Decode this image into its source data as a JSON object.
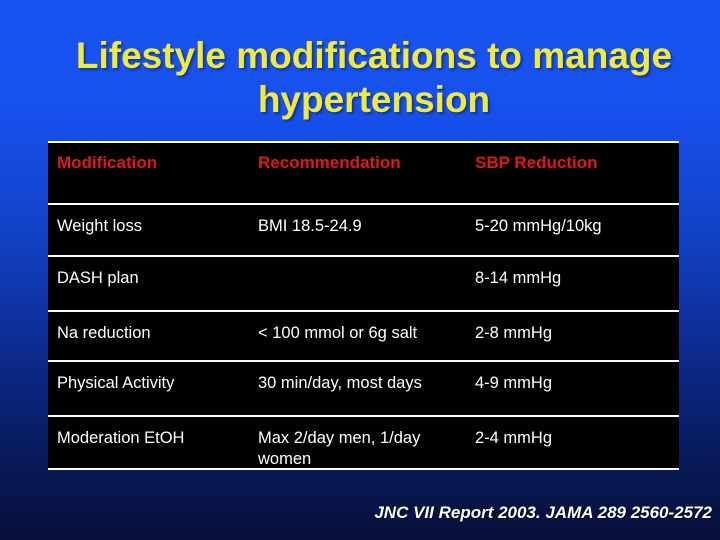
{
  "colors": {
    "background_top": "#1854F2",
    "background_bottom": "#060F38",
    "title_yellow": "#F0E93E",
    "header_red": "#CE1F1F",
    "table_background": "#000000",
    "table_divider": "#FFFFFF",
    "body_text": "#FFFFFF",
    "footer_text": "#FFFFFF"
  },
  "title": {
    "line1": "Lifestyle modifications to manage",
    "line2": "hypertension"
  },
  "table": {
    "headers": [
      "Modification",
      "Recommendation",
      "SBP Reduction"
    ],
    "rows": [
      {
        "modification": "Weight loss",
        "recommendation": "BMI 18.5-24.9",
        "sbp": "5-20 mmHg/10kg"
      },
      {
        "modification": "DASH plan",
        "recommendation": "",
        "sbp": "8-14 mmHg"
      },
      {
        "modification": "Na reduction",
        "recommendation": "< 100 mmol or 6g salt",
        "sbp": "2-8 mmHg"
      },
      {
        "modification": "Physical Activity",
        "recommendation": "30 min/day, most days",
        "sbp": "4-9 mmHg"
      },
      {
        "modification": "Moderation EtOH",
        "recommendation": "Max 2/day men, 1/day women",
        "sbp": "2-4 mmHg"
      }
    ]
  },
  "footer": {
    "citation": "JNC VII Report 2003. JAMA 289 2560-2572"
  }
}
